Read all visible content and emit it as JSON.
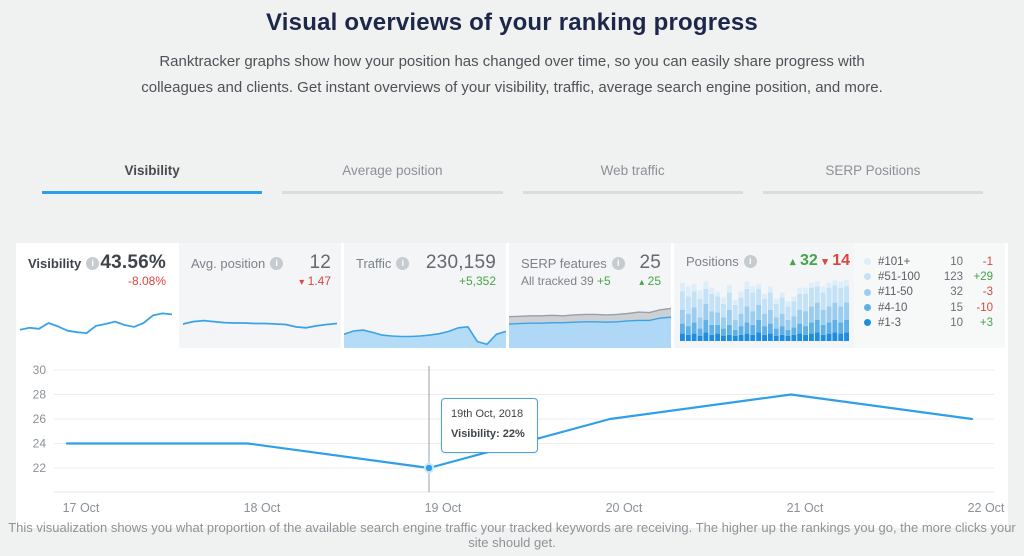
{
  "header": {
    "title": "Visual overviews of your ranking progress",
    "subtitle": "Ranktracker graphs show how your position has changed over time, so you can easily share progress with colleagues and clients. Get instant overviews of your visibility, traffic, average search engine position, and more."
  },
  "tabs": {
    "items": [
      {
        "label": "Visibility",
        "active": true
      },
      {
        "label": "Average position",
        "active": false
      },
      {
        "label": "Web traffic",
        "active": false
      },
      {
        "label": "SERP Positions",
        "active": false
      }
    ]
  },
  "cards": {
    "visibility": {
      "title": "Visibility",
      "value": "43.56%",
      "change": "-8.08%"
    },
    "avg_position": {
      "title": "Avg. position",
      "value": "12",
      "change_arrow": "▾",
      "change": "1.47"
    },
    "traffic": {
      "title": "Traffic",
      "value": "230,159",
      "change": "+5,352"
    },
    "serp": {
      "title": "SERP features",
      "value": "25",
      "tracked_label": "All tracked 39",
      "tracked_delta": "+5",
      "change_arrow": "▴",
      "change": "25"
    },
    "positions": {
      "title": "Positions",
      "up_arrow": "▴",
      "up": "32",
      "down_arrow": "▾",
      "down": "14",
      "legend": [
        {
          "label": "#101+",
          "count": "10",
          "delta": "-1",
          "trend": "down",
          "color": "#ddeefb"
        },
        {
          "label": "#51-100",
          "count": "123",
          "delta": "+29",
          "trend": "up",
          "color": "#c3e2f8"
        },
        {
          "label": "#11-50",
          "count": "32",
          "delta": "-3",
          "trend": "down",
          "color": "#9bcdf0"
        },
        {
          "label": "#4-10",
          "count": "15",
          "delta": "-10",
          "trend": "down",
          "color": "#5eb1e8"
        },
        {
          "label": "#1-3",
          "count": "10",
          "delta": "+3",
          "trend": "up",
          "color": "#1e8de0"
        }
      ]
    }
  },
  "footer": {
    "caption": "This visualization shows you what proportion of the available search engine traffic your tracked keywords are receiving. The higher up the rankings you go, the more clicks your site should get."
  },
  "colors": {
    "accent": "#2f9fe8",
    "red": "#d9473f",
    "green": "#47a44b",
    "navy": "#1c2749",
    "grid": "#ededed"
  },
  "chart_data": [
    {
      "id": "visibility-spark",
      "type": "line",
      "series_name": "Visibility sparkline",
      "values": [
        38,
        42,
        40,
        52,
        45,
        36,
        33,
        31,
        46,
        50,
        55,
        48,
        44,
        52,
        68,
        72,
        70
      ]
    },
    {
      "id": "avg-position-spark",
      "type": "line",
      "series_name": "Avg. position sparkline",
      "values": [
        50,
        55,
        57,
        55,
        53,
        52,
        52,
        51,
        51,
        50,
        49,
        44,
        42,
        46,
        49,
        51
      ]
    },
    {
      "id": "traffic-spark",
      "type": "area",
      "series_name": "Traffic sparkline",
      "values": [
        30,
        37,
        39,
        34,
        28,
        26,
        25,
        25,
        26,
        28,
        31,
        36,
        44,
        46,
        14,
        8,
        30,
        36
      ]
    },
    {
      "id": "serp-spark",
      "type": "stacked-area",
      "series_name": "SERP features sparkline",
      "series": [
        {
          "name": "tracked-keywords",
          "values": [
            52,
            53,
            54,
            54,
            55,
            55,
            56,
            57,
            57,
            56,
            57,
            59,
            60,
            60,
            65,
            67
          ]
        },
        {
          "name": "serp-features",
          "values": [
            68,
            69,
            70,
            70,
            71,
            70,
            72,
            73,
            73,
            72,
            73,
            75,
            78,
            77,
            83,
            86
          ]
        }
      ]
    },
    {
      "id": "positions-mini",
      "type": "stacked-bar",
      "series_name": "Positions distribution over time",
      "segment_order_bottom_to_top": [
        "#1-3",
        "#4-10",
        "#11-50",
        "#51-100",
        "#101+"
      ],
      "segment_colors": [
        "#1e8de0",
        "#5eb1e8",
        "#9bcdf0",
        "#c3e2f8",
        "#ddeefb"
      ],
      "bars": [
        [
          12,
          16,
          22,
          30,
          14
        ],
        [
          10,
          14,
          20,
          28,
          16
        ],
        [
          12,
          18,
          24,
          26,
          12
        ],
        [
          8,
          12,
          18,
          30,
          14
        ],
        [
          14,
          20,
          26,
          24,
          12
        ],
        [
          10,
          16,
          22,
          28,
          10
        ],
        [
          12,
          14,
          20,
          26,
          8
        ],
        [
          8,
          12,
          18,
          22,
          10
        ],
        [
          10,
          16,
          24,
          28,
          12
        ],
        [
          8,
          10,
          16,
          24,
          8
        ],
        [
          10,
          14,
          20,
          26,
          10
        ],
        [
          12,
          18,
          26,
          28,
          12
        ],
        [
          10,
          16,
          22,
          30,
          10
        ],
        [
          14,
          20,
          24,
          26,
          8
        ],
        [
          10,
          14,
          20,
          24,
          8
        ],
        [
          12,
          16,
          22,
          28,
          10
        ],
        [
          8,
          12,
          18,
          22,
          8
        ],
        [
          10,
          14,
          20,
          26,
          8
        ],
        [
          8,
          10,
          16,
          22,
          8
        ],
        [
          10,
          12,
          18,
          24,
          8
        ],
        [
          12,
          16,
          22,
          26,
          10
        ],
        [
          10,
          14,
          24,
          28,
          10
        ],
        [
          12,
          18,
          26,
          30,
          8
        ],
        [
          14,
          20,
          28,
          26,
          8
        ],
        [
          10,
          16,
          24,
          28,
          10
        ],
        [
          12,
          18,
          26,
          30,
          8
        ],
        [
          14,
          20,
          28,
          28,
          8
        ],
        [
          12,
          18,
          26,
          30,
          10
        ],
        [
          14,
          20,
          28,
          26,
          10
        ]
      ]
    },
    {
      "id": "main",
      "type": "line",
      "series_name": "Visibility",
      "x": [
        "17 Oct",
        "18 Oct",
        "19 Oct",
        "20 Oct",
        "21 Oct",
        "22 Oct"
      ],
      "values": [
        24,
        24,
        22,
        26,
        28,
        26
      ],
      "yticks": [
        30,
        28,
        26,
        24,
        22
      ],
      "ylim": [
        20.5,
        30.4
      ],
      "grid": true,
      "unit": "%",
      "marker_x_index": 2,
      "tooltip": {
        "date": "19th Oct, 2018",
        "text": "Visibility: 22%",
        "x_index": 2
      }
    }
  ]
}
